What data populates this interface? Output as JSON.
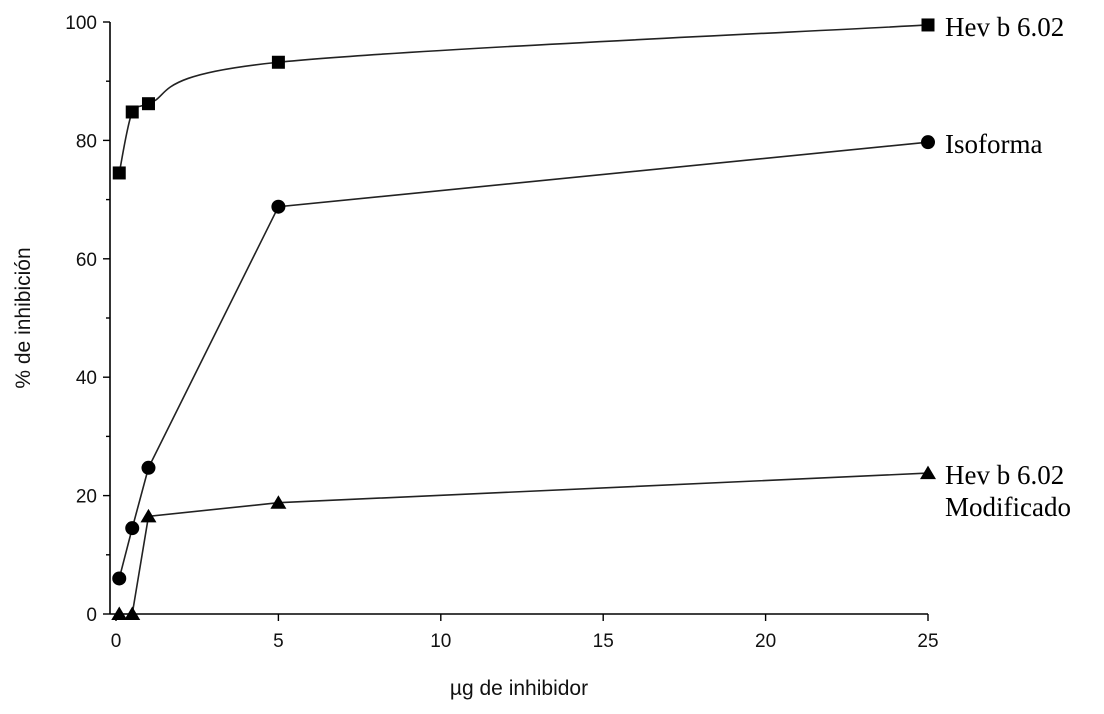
{
  "chart_data": {
    "type": "line",
    "title": "",
    "xlabel": "µg de inhibidor",
    "ylabel": "% de inhibición",
    "xlim": [
      0,
      25
    ],
    "ylim": [
      0,
      100
    ],
    "xticks": [
      0,
      5,
      10,
      15,
      20,
      25
    ],
    "yticks": [
      0,
      20,
      40,
      60,
      80,
      100
    ],
    "grid": false,
    "legend": "inline labels at right end of each series",
    "series": [
      {
        "name": "Hev b 6.02",
        "label_lines": [
          "Hev b 6.02"
        ],
        "marker": "square",
        "smooth": true,
        "x": [
          0.1,
          0.5,
          1,
          5,
          25
        ],
        "y": [
          74.5,
          84.8,
          86.2,
          93.2,
          99.5
        ]
      },
      {
        "name": "Isoforma",
        "label_lines": [
          "Isoforma"
        ],
        "marker": "circle",
        "smooth": false,
        "x": [
          0.1,
          0.5,
          1,
          5,
          25
        ],
        "y": [
          6,
          14.5,
          24.7,
          68.8,
          79.7
        ]
      },
      {
        "name": "Hev b 6.02 Modificado",
        "label_lines": [
          "Hev b 6.02",
          "Modificado"
        ],
        "marker": "triangle",
        "smooth": false,
        "x": [
          0.1,
          0.5,
          1,
          5,
          25
        ],
        "y": [
          0,
          0,
          16.5,
          18.8,
          23.8
        ]
      }
    ]
  }
}
